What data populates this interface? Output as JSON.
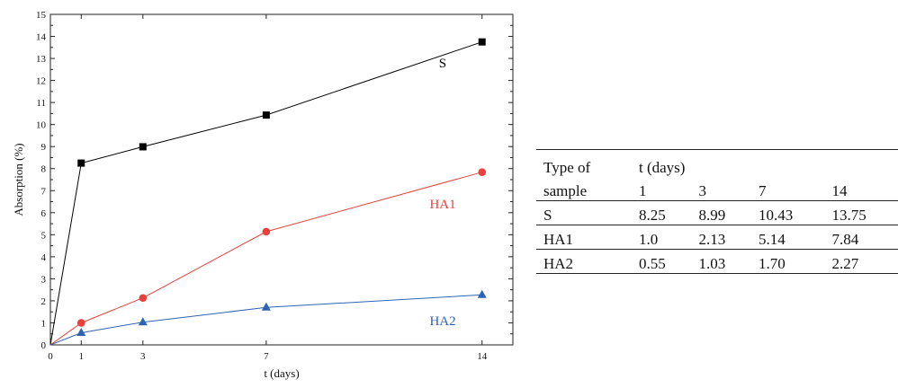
{
  "chart_data": {
    "type": "line",
    "xlabel": "t (days)",
    "ylabel": "Absorption (%)",
    "xlim": [
      0,
      15
    ],
    "ylim": [
      0,
      15
    ],
    "x_ticks": [
      0,
      1,
      3,
      7,
      14
    ],
    "y_ticks": [
      0,
      1,
      2,
      3,
      4,
      5,
      6,
      7,
      8,
      9,
      10,
      11,
      12,
      13,
      14,
      15
    ],
    "grid": false,
    "series": [
      {
        "name": "S",
        "color": "#000000",
        "marker": "square",
        "x": [
          0,
          1,
          3,
          7,
          14
        ],
        "y": [
          0,
          8.25,
          8.99,
          10.43,
          13.75
        ],
        "label_at": [
          12.6,
          12.6
        ]
      },
      {
        "name": "HA1",
        "color": "#e8403c",
        "marker": "circle",
        "x": [
          0,
          1,
          3,
          7,
          14
        ],
        "y": [
          0,
          1.0,
          2.13,
          5.14,
          7.84
        ],
        "label_at": [
          12.3,
          6.2
        ]
      },
      {
        "name": "HA2",
        "color": "#2e63b4",
        "marker": "triangle",
        "x": [
          0,
          1,
          3,
          7,
          14
        ],
        "y": [
          0,
          0.55,
          1.03,
          1.7,
          2.27
        ],
        "label_at": [
          12.3,
          0.9
        ]
      }
    ]
  },
  "table": {
    "header_row1": [
      "Type of",
      "t (days)"
    ],
    "header_row2": [
      "sample",
      "1",
      "3",
      "7",
      "14"
    ],
    "rows": [
      [
        "S",
        "8.25",
        "8.99",
        "10.43",
        "13.75"
      ],
      [
        "HA1",
        "1.0",
        "2.13",
        "5.14",
        "7.84"
      ],
      [
        "HA2",
        "0.55",
        "1.03",
        "1.70",
        "2.27"
      ]
    ]
  }
}
